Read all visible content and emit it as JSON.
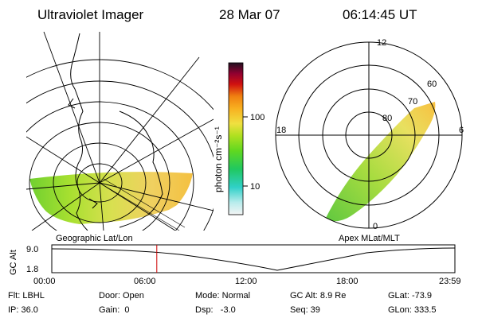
{
  "header": {
    "instrument": "Ultraviolet Imager",
    "date": "28 Mar 07",
    "time": "06:14:45 UT"
  },
  "geo_panel": {
    "caption": "Geographic Lat/Lon"
  },
  "colorbar": {
    "unit_label": "photon cm⁻²s⁻¹",
    "ticks": [
      "100",
      "10"
    ]
  },
  "polar_panel": {
    "caption": "Apex MLat/MLT",
    "mlt_labels": {
      "top": "12",
      "left": "18",
      "right": "6",
      "bottom": "0"
    },
    "lat_labels": [
      "60",
      "70",
      "80"
    ]
  },
  "timeline": {
    "ylabel": "GC Alt",
    "yticks": [
      "9.0",
      "1.8"
    ],
    "xticks": [
      "00:00",
      "06:00",
      "12:00",
      "18:00",
      "23:59"
    ],
    "current_time_hours": 6.25,
    "marker_color": "#cc0000"
  },
  "footer": {
    "flt": "Flt: LBHL",
    "door": "Door: Open",
    "mode": "Mode: Normal",
    "gc_alt": "GC Alt: 8.9 Re",
    "glat": "GLat: -73.9",
    "ip": "IP: 36.0",
    "gain": "Gain:  0",
    "dsp": "Dsp:   -3.0",
    "seq": "Seq: 39",
    "glon": "GLon: 333.5"
  }
}
